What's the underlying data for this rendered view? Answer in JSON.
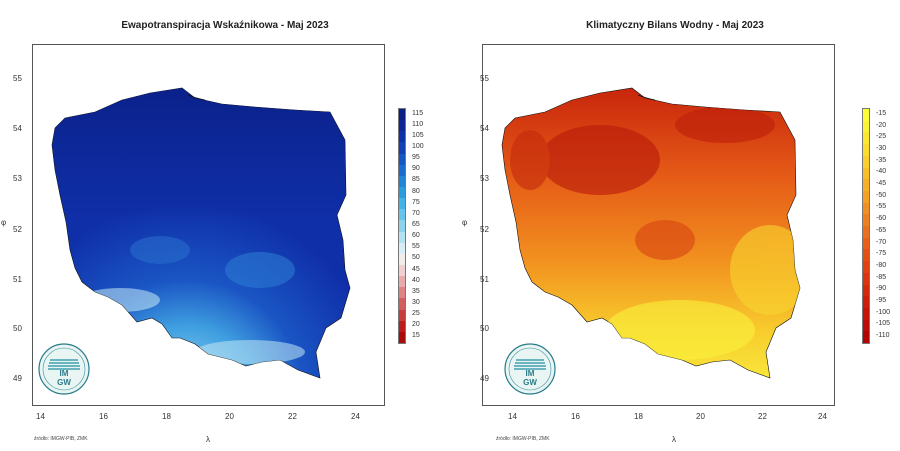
{
  "maps": [
    {
      "id": "left",
      "title": "Ewapotranspiracja Wskaźnikowa - Maj 2023",
      "x_ticks": [
        "14",
        "16",
        "18",
        "20",
        "22",
        "24"
      ],
      "y_ticks": [
        "55",
        "54",
        "53",
        "52",
        "51",
        "50",
        "49"
      ],
      "x_axis_label": "λ",
      "y_axis_label": "φ",
      "source": "źródło: IMGW-PIB, ZMK",
      "legend": [
        "115",
        "110",
        "105",
        "100",
        "95",
        "90",
        "85",
        "80",
        "75",
        "70",
        "65",
        "60",
        "55",
        "50",
        "45",
        "40",
        "35",
        "30",
        "25",
        "20",
        "15"
      ],
      "legend_colors": [
        "#0a1f86",
        "#0b2596",
        "#0e30a8",
        "#1240b8",
        "#1656c6",
        "#1a6dd0",
        "#1f85d8",
        "#2a9ddf",
        "#43b2e6",
        "#67c4ea",
        "#8cd3ee",
        "#b3e2f2",
        "#d8eef6",
        "#f1ede8",
        "#f0cfcf",
        "#e8aaaa",
        "#de8484",
        "#d35e5e",
        "#c83c3c",
        "#bb1c1c",
        "#aa0a0a"
      ],
      "dominant_colors": {
        "main": "#0f2fa8",
        "north": "#0a1f86",
        "south_light": "#9ed7f0"
      },
      "logo_text": "IMGW"
    },
    {
      "id": "right",
      "title": "Klimatyczny Bilans Wodny - Maj 2023",
      "x_ticks": [
        "14",
        "16",
        "18",
        "20",
        "22",
        "24"
      ],
      "y_ticks": [
        "55",
        "54",
        "53",
        "52",
        "51",
        "50",
        "49"
      ],
      "x_axis_label": "λ",
      "y_axis_label": "φ",
      "source": "źródło: IMGW-PIB, ZMK",
      "legend": [
        "-15",
        "-20",
        "-25",
        "-30",
        "-35",
        "-40",
        "-45",
        "-50",
        "-55",
        "-60",
        "-65",
        "-70",
        "-75",
        "-80",
        "-85",
        "-90",
        "-95",
        "-100",
        "-105",
        "-110"
      ],
      "legend_colors": [
        "#fffd3a",
        "#fdf336",
        "#fce834",
        "#fbdc31",
        "#f9ce2e",
        "#f8bf2b",
        "#f6af28",
        "#f49f25",
        "#f18f22",
        "#ee7f1f",
        "#eb6f1c",
        "#e75f19",
        "#e35016",
        "#de4213",
        "#d93510",
        "#d3290d",
        "#cc1f0b",
        "#c41509",
        "#bb0c07",
        "#b00505"
      ],
      "dominant_colors": {
        "main": "#ef7a1e",
        "north": "#cc2a0c",
        "south_light": "#f8e63a"
      },
      "logo_text": "IMGW"
    }
  ]
}
